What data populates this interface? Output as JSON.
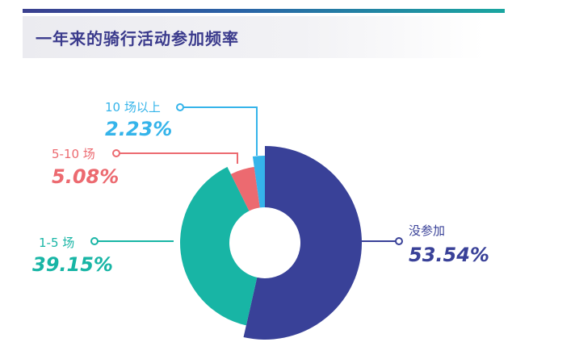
{
  "header": {
    "title": "一年来的骑行活动参加频率"
  },
  "colors": {
    "accent": "#3a3a8c",
    "none": "#394198",
    "one_five": "#18b5a5",
    "five_ten": "#ec6a70",
    "ten_plus": "#35b4ea"
  },
  "chart_data": {
    "type": "pie",
    "title": "一年来的骑行活动参加频率",
    "slices": [
      {
        "label": "没参加",
        "value": 53.54,
        "display": "53.54%",
        "color": "#394198"
      },
      {
        "label": "1-5 场",
        "value": 39.15,
        "display": "39.15%",
        "color": "#18b5a5"
      },
      {
        "label": "5-10 场",
        "value": 5.08,
        "display": "5.08%",
        "color": "#ec6a70"
      },
      {
        "label": "10 场以上",
        "value": 2.23,
        "display": "2.23%",
        "color": "#35b4ea"
      }
    ]
  }
}
